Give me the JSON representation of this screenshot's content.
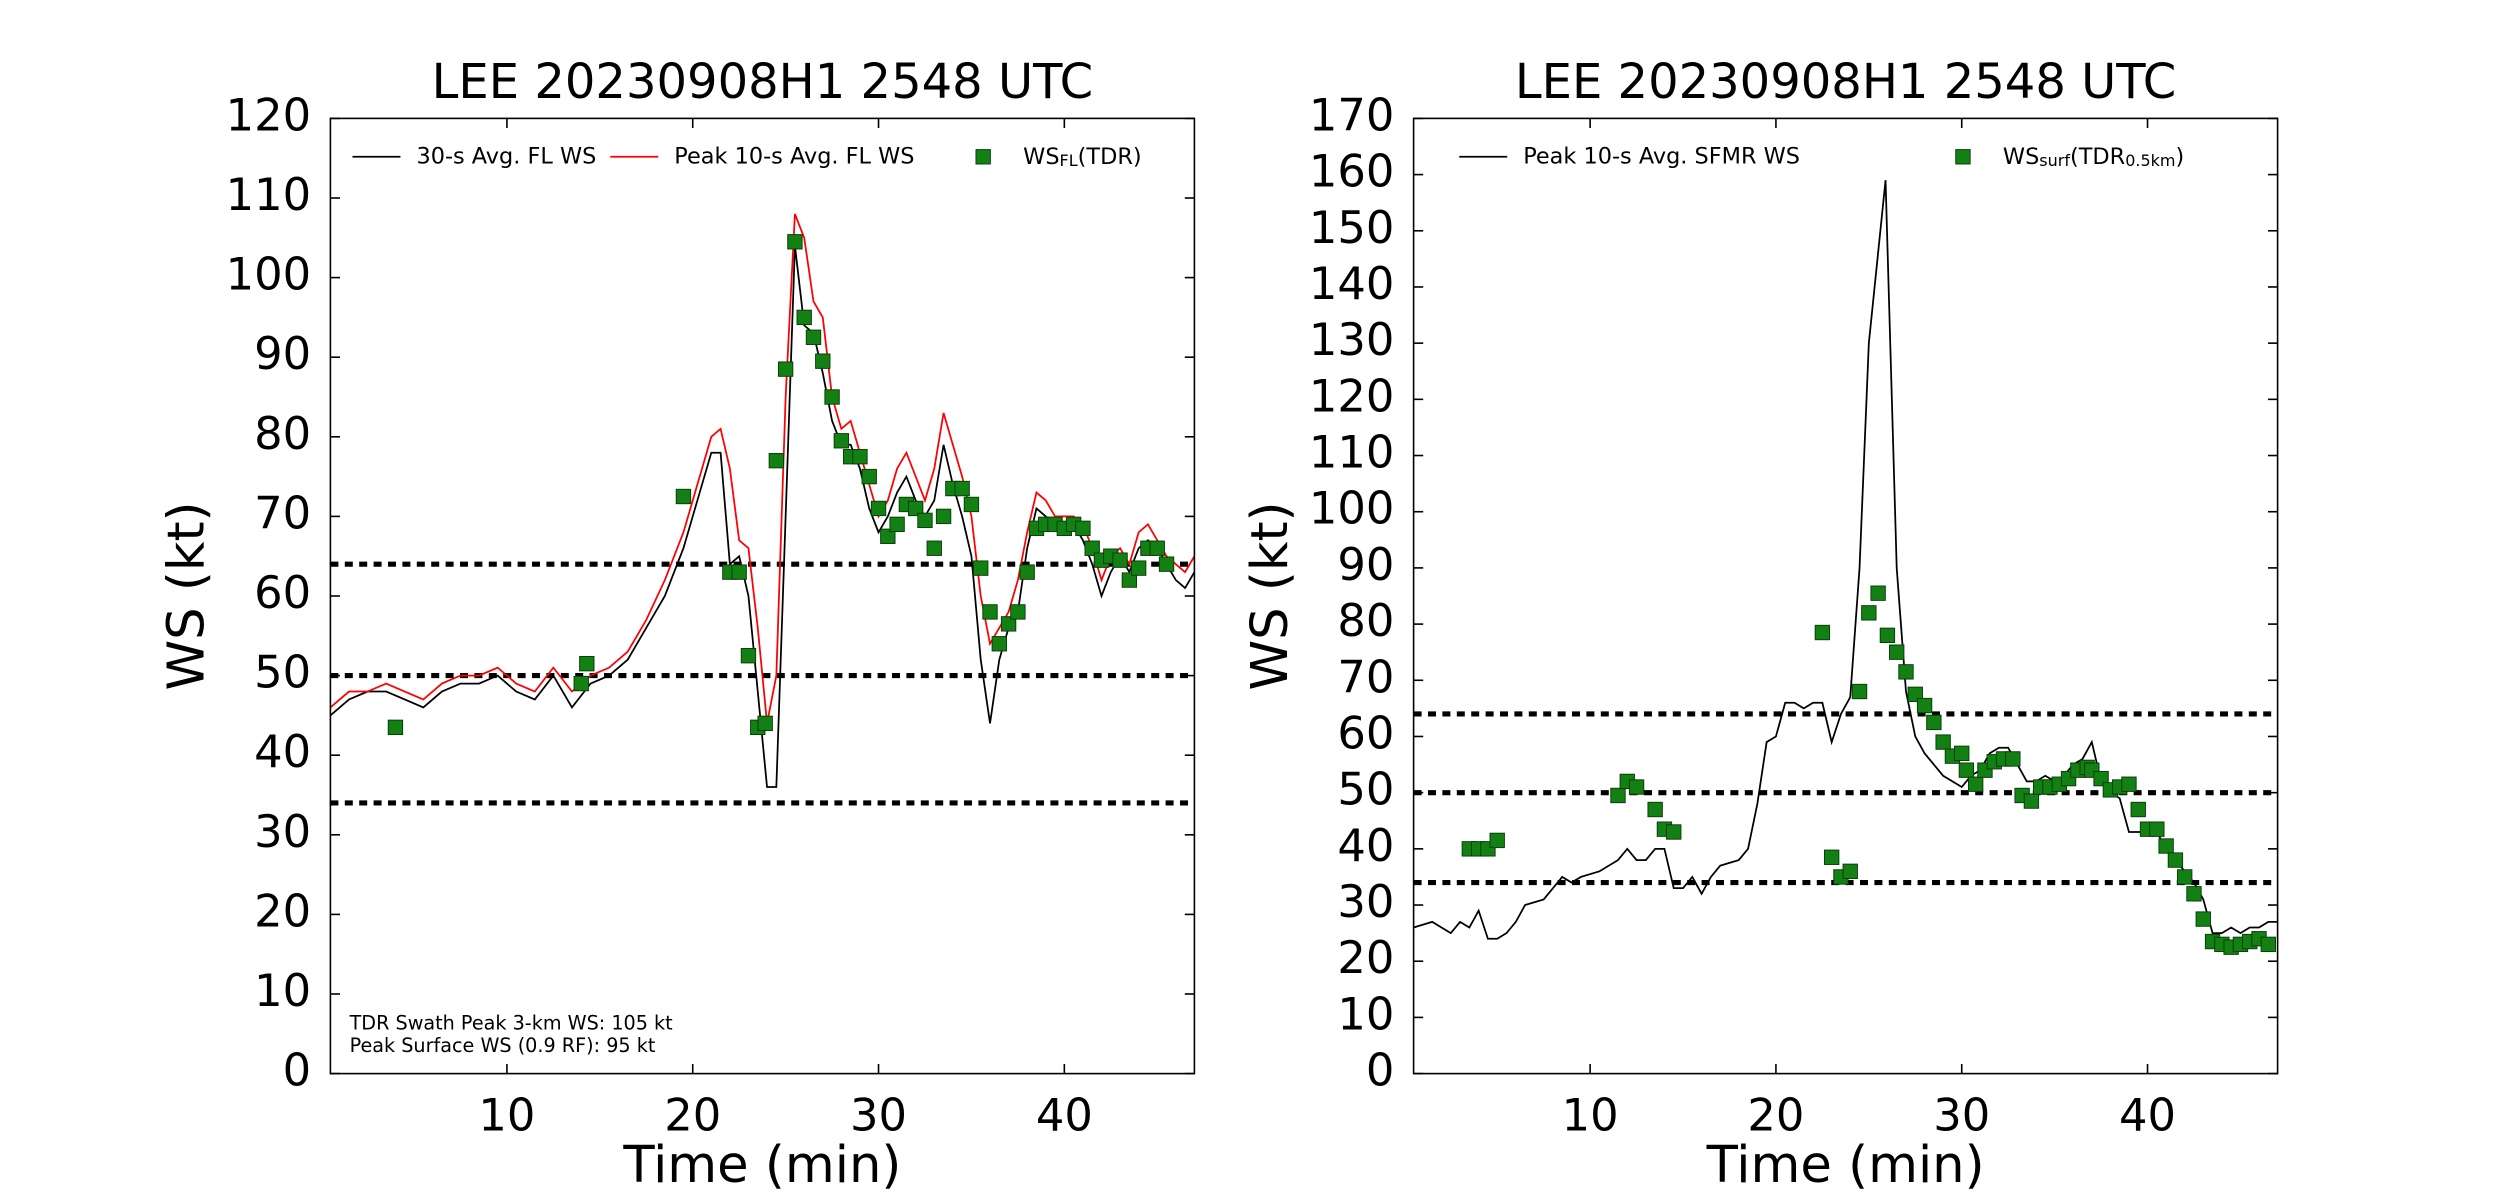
{
  "chart_data": [
    {
      "type": "line",
      "title": "LEE 20230908H1 2548 UTC",
      "xlabel": "Time (min)",
      "ylabel": "WS (kt)",
      "xlim": [
        0.5,
        47
      ],
      "ylim": [
        0,
        120
      ],
      "xticks": [
        10,
        20,
        30,
        40
      ],
      "yticks": [
        0,
        10,
        20,
        30,
        40,
        50,
        60,
        70,
        80,
        90,
        100,
        110,
        120
      ],
      "hlines": [
        34,
        50,
        64
      ],
      "annotations": [
        "TDR Swath Peak 3-km WS: 105 kt",
        "Peak Surface WS (0.9 RF): 95 kt"
      ],
      "series": [
        {
          "name": "30-s Avg. FL WS",
          "color": "#000000",
          "style": "line",
          "x": [
            0.5,
            1.5,
            2.5,
            3.5,
            4.5,
            5.5,
            6.5,
            7.5,
            8.5,
            9.5,
            10.5,
            11.5,
            12.5,
            13.5,
            14.5,
            15.5,
            16.5,
            17.5,
            18.5,
            19.5,
            20.5,
            21,
            21.5,
            22,
            22.5,
            23,
            23.5,
            24,
            24.5,
            25,
            25.5,
            26,
            26.5,
            27,
            27.5,
            28,
            28.5,
            29,
            29.5,
            30,
            30.5,
            31,
            31.5,
            32,
            32.5,
            33,
            33.5,
            34,
            34.5,
            35,
            35.5,
            36,
            36.5,
            37,
            37.5,
            38,
            38.5,
            39,
            39.5,
            40,
            40.5,
            41,
            41.5,
            42,
            42.5,
            43,
            43.5,
            44,
            44.5,
            45,
            45.5,
            46,
            46.5,
            47
          ],
          "values": [
            45,
            47,
            48,
            48,
            47,
            46,
            48,
            49,
            49,
            50,
            48,
            47,
            50,
            46,
            49,
            50,
            52,
            56,
            60,
            66,
            74,
            78,
            78,
            64,
            65,
            60,
            48,
            36,
            36,
            70,
            104,
            94,
            93,
            88,
            82,
            79,
            79,
            76,
            71,
            68,
            70,
            73,
            75,
            72,
            70,
            72,
            79,
            74,
            70,
            65,
            52,
            44,
            52,
            56,
            58,
            66,
            71,
            70,
            69,
            69,
            69,
            67,
            64,
            60,
            63,
            65,
            63,
            66,
            67,
            66,
            64,
            62,
            61,
            63
          ]
        },
        {
          "name": "Peak 10-s Avg. FL WS",
          "color": "#ff0000",
          "style": "line",
          "x": [
            0.5,
            1.5,
            2.5,
            3.5,
            4.5,
            5.5,
            6.5,
            7.5,
            8.5,
            9.5,
            10.5,
            11.5,
            12.5,
            13.5,
            14.5,
            15.5,
            16.5,
            17.5,
            18.5,
            19.5,
            20.5,
            21,
            21.5,
            22,
            22.5,
            23,
            23.5,
            24,
            24.5,
            25,
            25.5,
            26,
            26.5,
            27,
            27.5,
            28,
            28.5,
            29,
            29.5,
            30,
            30.5,
            31,
            31.5,
            32,
            32.5,
            33,
            33.5,
            34,
            34.5,
            35,
            35.5,
            36,
            36.5,
            37,
            37.5,
            38,
            38.5,
            39,
            39.5,
            40,
            40.5,
            41,
            41.5,
            42,
            42.5,
            43,
            43.5,
            44,
            44.5,
            45,
            45.5,
            46,
            46.5,
            47
          ],
          "values": [
            46,
            48,
            48,
            49,
            48,
            47,
            49,
            50,
            50,
            51,
            49,
            48,
            51,
            48,
            50,
            51,
            53,
            57,
            62,
            68,
            76,
            80,
            81,
            76,
            67,
            66,
            56,
            44,
            50,
            85,
            108,
            105,
            97,
            95,
            85,
            81,
            82,
            78,
            74,
            70,
            72,
            76,
            78,
            75,
            72,
            76,
            83,
            79,
            75,
            70,
            60,
            54,
            56,
            58,
            62,
            68,
            73,
            72,
            70,
            70,
            70,
            69,
            66,
            62,
            65,
            66,
            64,
            68,
            69,
            67,
            65,
            64,
            63,
            65
          ]
        },
        {
          "label_parts": [
            {
              "text": "WS"
            },
            {
              "text": "FL",
              "sub": true
            },
            {
              "text": "(TDR)"
            }
          ],
          "color": "#138013",
          "style": "marker",
          "x": [
            4,
            14,
            14.3,
            19.5,
            22,
            22.5,
            23,
            23.5,
            23.9,
            24.5,
            25,
            25.5,
            26,
            26.5,
            27,
            27.5,
            28,
            28.5,
            29,
            29.5,
            30,
            30.5,
            31,
            31.5,
            32,
            32.5,
            33,
            33.5,
            34,
            34.5,
            35,
            35.5,
            36,
            36.5,
            37,
            37.5,
            38,
            38.5,
            39,
            39.5,
            40,
            40.5,
            41,
            41.5,
            42,
            42.5,
            43,
            43.5,
            44,
            44.5,
            45,
            45.5
          ],
          "values": [
            43.5,
            49,
            51.5,
            72.5,
            63,
            63,
            52.5,
            43.5,
            44,
            77,
            88.5,
            104.5,
            95,
            92.5,
            89.5,
            85,
            79.5,
            77.5,
            77.5,
            75,
            71,
            67.5,
            69,
            71.5,
            71,
            69.5,
            66,
            70,
            73.5,
            73.5,
            71.5,
            63.5,
            58,
            54,
            56.5,
            58,
            63,
            68.5,
            69,
            69,
            68.5,
            69,
            68.5,
            66,
            64.5,
            65,
            64.5,
            62,
            63.5,
            66,
            66,
            64
          ]
        }
      ]
    },
    {
      "type": "line",
      "title": "LEE 20230908H1 2548 UTC",
      "xlabel": "Time (min)",
      "ylabel": "WS (kt)",
      "xlim": [
        0.5,
        47
      ],
      "ylim": [
        0,
        170
      ],
      "xticks": [
        10,
        20,
        30,
        40
      ],
      "yticks": [
        0,
        10,
        20,
        30,
        40,
        50,
        60,
        70,
        80,
        90,
        100,
        110,
        120,
        130,
        140,
        150,
        160,
        170
      ],
      "hlines": [
        34,
        50,
        64
      ],
      "series": [
        {
          "name": "Peak 10-s Avg. SFMR WS",
          "color": "#000000",
          "style": "line",
          "x": [
            0.5,
            1.5,
            2.5,
            3,
            3.5,
            4,
            4.5,
            5,
            5.5,
            6,
            6.5,
            7.5,
            8,
            8.5,
            9,
            9.5,
            10.5,
            11.5,
            12,
            12.5,
            13,
            13.5,
            14,
            14.5,
            15,
            15.5,
            16,
            16.5,
            17,
            18,
            18.5,
            19,
            19.5,
            20,
            20.5,
            21,
            21.5,
            22,
            22.5,
            23,
            23.5,
            24,
            24.5,
            25,
            25.9,
            26.5,
            27,
            27.5,
            28,
            28.5,
            29,
            29.5,
            30,
            30.5,
            31,
            31.5,
            32,
            32.5,
            33,
            33.5,
            34,
            34.5,
            35,
            35.5,
            36,
            36.5,
            37,
            37.5,
            38,
            38.5,
            39,
            40,
            40.5,
            41,
            41.5,
            42,
            42.5,
            43,
            43.5,
            44,
            44.5,
            45,
            45.5,
            46,
            46.5,
            47
          ],
          "values": [
            26,
            27,
            25,
            27,
            26,
            29,
            24,
            24,
            25,
            27,
            30,
            31,
            33,
            35,
            34,
            35,
            36,
            38,
            40,
            38,
            38,
            40,
            40,
            33,
            33,
            35,
            32,
            35,
            37,
            38,
            40,
            48,
            59,
            60,
            66,
            66,
            65,
            66,
            66,
            59,
            64,
            67,
            90,
            130,
            159,
            90,
            68,
            60,
            57,
            55,
            53,
            52,
            51,
            53,
            54,
            57,
            58,
            58,
            55,
            52,
            52,
            53,
            52,
            53,
            55,
            56,
            59,
            52,
            50,
            49,
            43,
            43,
            43,
            40,
            38,
            36,
            34,
            31,
            25,
            25,
            26,
            25,
            26,
            26,
            27,
            27
          ]
        },
        {
          "label_parts": [
            {
              "text": "WS"
            },
            {
              "text": "surf",
              "sub": true
            },
            {
              "text": "(TDR"
            },
            {
              "text": "0.5km",
              "sub": true
            },
            {
              "text": ")"
            }
          ],
          "color": "#138013",
          "style": "marker",
          "x": [
            3.5,
            4,
            4.5,
            5,
            11.5,
            12,
            12.5,
            13.5,
            14,
            14.5,
            22.5,
            23,
            23.5,
            24,
            24.5,
            25,
            25.5,
            26,
            26.5,
            27,
            27.5,
            28,
            28.5,
            29,
            29.5,
            30,
            30.25,
            30.75,
            31.25,
            31.75,
            32.25,
            32.75,
            33.25,
            33.75,
            34.25,
            34.75,
            35.25,
            35.75,
            36.25,
            36.75,
            37,
            37.5,
            38,
            38.5,
            39,
            39.5,
            40,
            40.5,
            41,
            41.5,
            42,
            42.5,
            43,
            43.5,
            44,
            44.5,
            45,
            45.5,
            46,
            46.5
          ],
          "values": [
            40,
            40,
            40,
            41.5,
            49.5,
            52,
            51,
            47,
            43.5,
            43,
            78.5,
            38.5,
            35,
            36,
            68,
            82,
            85.5,
            78,
            75,
            71.5,
            67.5,
            65.5,
            62.5,
            59,
            56.5,
            57,
            54,
            51.5,
            54,
            55.5,
            56,
            56,
            49.5,
            48.5,
            51,
            51,
            51.5,
            52.5,
            54,
            54.5,
            54,
            52.5,
            50.5,
            51,
            51.5,
            47,
            43.5,
            43.5,
            40.5,
            38,
            35,
            32,
            27.5,
            23.5,
            23,
            22.5,
            23,
            23.5,
            24,
            23
          ]
        }
      ]
    }
  ]
}
